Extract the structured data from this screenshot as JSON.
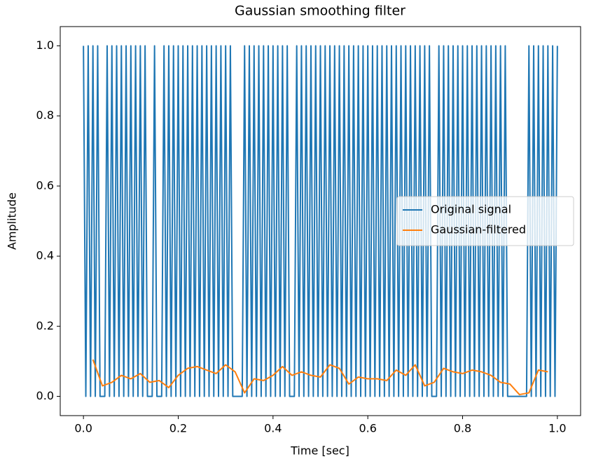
{
  "chart_data": {
    "type": "line",
    "title": "Gaussian smoothing filter",
    "x_label": "Time [sec]",
    "y_label": "Amplitude",
    "xlim": [
      -0.049,
      1.049
    ],
    "ylim": [
      -0.055,
      1.055
    ],
    "xticks": [
      {
        "value": 0,
        "label": "0.0"
      },
      0.2,
      0.4,
      0.6,
      0.8,
      {
        "value": 1,
        "label": "1.0"
      }
    ],
    "yticks": [
      {
        "value": 0,
        "label": "0.0"
      },
      0.2,
      0.4,
      0.6,
      0.8,
      {
        "value": 1,
        "label": "1.0"
      }
    ],
    "legend": "center right",
    "grid": false,
    "series": [
      {
        "name": "Original signal",
        "color": "#1f77b4",
        "x": [
          0,
          0.005,
          0.01,
          0.015,
          0.02,
          0.025,
          0.03,
          0.035,
          0.04,
          0.045,
          0.05,
          0.055,
          0.06,
          0.065,
          0.07,
          0.075,
          0.08,
          0.085,
          0.09,
          0.095,
          0.1,
          0.105,
          0.11,
          0.115,
          0.12,
          0.125,
          0.13,
          0.135,
          0.14,
          0.145,
          0.15,
          0.155,
          0.16,
          0.165,
          0.17,
          0.175,
          0.18,
          0.185,
          0.19,
          0.195,
          0.2,
          0.205,
          0.21,
          0.215,
          0.22,
          0.225,
          0.23,
          0.235,
          0.24,
          0.245,
          0.25,
          0.255,
          0.26,
          0.265,
          0.27,
          0.275,
          0.28,
          0.285,
          0.29,
          0.295,
          0.3,
          0.305,
          0.31,
          0.315,
          0.32,
          0.325,
          0.33,
          0.335,
          0.34,
          0.345,
          0.35,
          0.355,
          0.36,
          0.365,
          0.37,
          0.375,
          0.38,
          0.385,
          0.39,
          0.395,
          0.4,
          0.405,
          0.41,
          0.415,
          0.42,
          0.425,
          0.43,
          0.435,
          0.44,
          0.445,
          0.45,
          0.455,
          0.46,
          0.465,
          0.47,
          0.475,
          0.48,
          0.485,
          0.49,
          0.495,
          0.5,
          0.505,
          0.51,
          0.515,
          0.52,
          0.525,
          0.53,
          0.535,
          0.54,
          0.545,
          0.55,
          0.555,
          0.56,
          0.565,
          0.57,
          0.575,
          0.58,
          0.585,
          0.59,
          0.595,
          0.6,
          0.605,
          0.61,
          0.615,
          0.62,
          0.625,
          0.63,
          0.635,
          0.64,
          0.645,
          0.65,
          0.655,
          0.66,
          0.665,
          0.67,
          0.675,
          0.68,
          0.685,
          0.69,
          0.695,
          0.7,
          0.705,
          0.71,
          0.715,
          0.72,
          0.725,
          0.73,
          0.735,
          0.74,
          0.745,
          0.75,
          0.755,
          0.76,
          0.765,
          0.77,
          0.775,
          0.78,
          0.785,
          0.79,
          0.795,
          0.8,
          0.805,
          0.81,
          0.815,
          0.82,
          0.825,
          0.83,
          0.835,
          0.84,
          0.845,
          0.85,
          0.855,
          0.86,
          0.865,
          0.87,
          0.875,
          0.88,
          0.885,
          0.89,
          0.895,
          0.9,
          0.905,
          0.91,
          0.915,
          0.92,
          0.925,
          0.93,
          0.935,
          0.94,
          0.945,
          0.95,
          0.955,
          0.96,
          0.965,
          0.97,
          0.975,
          0.98,
          0.985,
          0.99,
          0.995,
          1
        ],
        "values": [
          1,
          0,
          1,
          0,
          1,
          0,
          1,
          0,
          0,
          0,
          1,
          0,
          1,
          0,
          1,
          0,
          1,
          0,
          1,
          0,
          1,
          0,
          1,
          0,
          1,
          0,
          1,
          0,
          0,
          0,
          1,
          0,
          0,
          0,
          1,
          0,
          1,
          0,
          1,
          0,
          1,
          0,
          1,
          0,
          1,
          0,
          1,
          0,
          1,
          0,
          1,
          0,
          1,
          0,
          1,
          0,
          1,
          0,
          1,
          0,
          1,
          0,
          1,
          0,
          0,
          0,
          0,
          0,
          1,
          0,
          1,
          0,
          1,
          0,
          1,
          0,
          1,
          0,
          1,
          0,
          1,
          0,
          1,
          0,
          1,
          0,
          1,
          0,
          0,
          0,
          1,
          0,
          1,
          0,
          1,
          0,
          1,
          0,
          1,
          0,
          1,
          0,
          1,
          0,
          1,
          0,
          1,
          0,
          1,
          0,
          1,
          0,
          1,
          0,
          1,
          0,
          1,
          0,
          1,
          0,
          1,
          0,
          1,
          0,
          1,
          0,
          1,
          0,
          1,
          0,
          1,
          0,
          1,
          0,
          1,
          0,
          1,
          0,
          1,
          0,
          1,
          0,
          1,
          0,
          1,
          0,
          1,
          0,
          0,
          0,
          1,
          0,
          1,
          0,
          1,
          0,
          1,
          0,
          1,
          0,
          1,
          0,
          1,
          0,
          1,
          0,
          1,
          0,
          1,
          0,
          1,
          0,
          1,
          0,
          1,
          0,
          1,
          0,
          1,
          0,
          0,
          0,
          0,
          0,
          0,
          0,
          0,
          0,
          1,
          0,
          1,
          0,
          1,
          0,
          1,
          0,
          1,
          0,
          1,
          0,
          1
        ]
      },
      {
        "name": "Gaussian-filtered",
        "color": "#ff7f0e",
        "x": [
          0.02,
          0.04,
          0.06,
          0.08,
          0.1,
          0.12,
          0.14,
          0.16,
          0.18,
          0.2,
          0.22,
          0.24,
          0.26,
          0.28,
          0.3,
          0.32,
          0.34,
          0.36,
          0.38,
          0.4,
          0.42,
          0.44,
          0.46,
          0.48,
          0.5,
          0.52,
          0.54,
          0.56,
          0.58,
          0.6,
          0.62,
          0.64,
          0.66,
          0.68,
          0.7,
          0.72,
          0.74,
          0.76,
          0.78,
          0.8,
          0.82,
          0.84,
          0.86,
          0.88,
          0.9,
          0.92,
          0.94,
          0.96,
          0.98
        ],
        "values": [
          0.105,
          0.03,
          0.04,
          0.06,
          0.05,
          0.065,
          0.04,
          0.045,
          0.025,
          0.06,
          0.08,
          0.085,
          0.075,
          0.065,
          0.09,
          0.07,
          0.01,
          0.05,
          0.045,
          0.06,
          0.085,
          0.06,
          0.07,
          0.06,
          0.055,
          0.09,
          0.08,
          0.035,
          0.055,
          0.05,
          0.05,
          0.045,
          0.075,
          0.06,
          0.09,
          0.03,
          0.04,
          0.08,
          0.07,
          0.065,
          0.075,
          0.07,
          0.06,
          0.04,
          0.035,
          0.005,
          0.01,
          0.075,
          0.07
        ]
      }
    ]
  }
}
